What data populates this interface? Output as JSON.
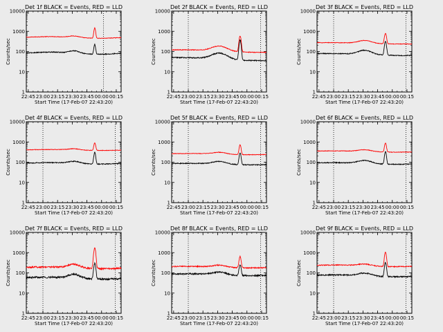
{
  "figure": {
    "background": "#ebebeb"
  },
  "chart_data": [
    {
      "type": "line",
      "title": "Det 1f BLACK = Events, RED = LLD",
      "xlabel": "Start Time (17-Feb-07 22:43:20)",
      "ylabel": "Counts/sec",
      "yscale": "log",
      "ylim": [
        1,
        10000
      ],
      "xlim": [
        "22:43",
        "00:20"
      ],
      "x_ticks": [
        "22:45",
        "23:00",
        "23:15",
        "23:30",
        "23:45",
        "00:00",
        "00:15"
      ],
      "y_ticks": [
        "1",
        "10",
        "100",
        "1000",
        "10000"
      ],
      "markers": [
        "00:02"
      ],
      "series": [
        {
          "color": "#ff0000",
          "base": 480,
          "ripple": [
            0.05,
            0.09,
            0.03
          ],
          "hump": 0.18,
          "hump_w": 7,
          "peak": 1500,
          "peak_w": 1.1,
          "noise": 0.03
        },
        {
          "color": "#000000",
          "base": 80,
          "ripple": [
            0.05,
            0.12,
            0.04
          ],
          "hump": 0.3,
          "hump_w": 7,
          "peak": 230,
          "peak_w": 1.1,
          "noise": 0.05
        }
      ]
    },
    {
      "type": "line",
      "title": "Det 2f BLACK = Events, RED = LLD",
      "xlabel": "Start Time (17-Feb-07 22:43:20)",
      "ylabel": "Counts/sec",
      "yscale": "log",
      "ylim": [
        1,
        10000
      ],
      "xlim": [
        "22:43",
        "00:20"
      ],
      "x_ticks": [
        "22:45",
        "23:00",
        "23:15",
        "23:30",
        "23:45",
        "00:00",
        "00:15"
      ],
      "y_ticks": [
        "1",
        "10",
        "100",
        "1000",
        "10000"
      ],
      "markers": [
        "23:00",
        "00:14"
      ],
      "series": [
        {
          "color": "#ff0000",
          "base": 105,
          "ripple": [
            0.16,
            0.05,
            -0.12
          ],
          "hump": 0.75,
          "hump_w": 10,
          "peak": 600,
          "peak_w": 1.3,
          "noise": 0.04
        },
        {
          "color": "#000000",
          "base": 42,
          "ripple": [
            0.2,
            0.05,
            -0.15
          ],
          "hump": 0.95,
          "hump_w": 10,
          "peak": 370,
          "peak_w": 1.3,
          "noise": 0.06
        }
      ]
    },
    {
      "type": "line",
      "title": "Det 3f BLACK = Events, RED = LLD",
      "xlabel": "Start Time (17-Feb-07 22:43:20)",
      "ylabel": "Counts/sec",
      "yscale": "log",
      "ylim": [
        1,
        10000
      ],
      "xlim": [
        "22:43",
        "00:20"
      ],
      "x_ticks": [
        "22:45",
        "23:00",
        "23:15",
        "23:30",
        "23:45",
        "00:00",
        "00:15"
      ],
      "y_ticks": [
        "1",
        "10",
        "100",
        "1000",
        "10000"
      ],
      "markers": [
        "23:00",
        "00:14"
      ],
      "series": [
        {
          "color": "#ff0000",
          "base": 250,
          "ripple": [
            0.1,
            0.03,
            -0.05
          ],
          "hump": 0.38,
          "hump_w": 9,
          "peak": 800,
          "peak_w": 1.3,
          "noise": 0.03
        },
        {
          "color": "#000000",
          "base": 70,
          "ripple": [
            0.14,
            0.04,
            -0.08
          ],
          "hump": 0.6,
          "hump_w": 9,
          "peak": 320,
          "peak_w": 1.3,
          "noise": 0.05
        }
      ]
    },
    {
      "type": "line",
      "title": "Det 4f BLACK = Events, RED = LLD",
      "xlabel": "Start Time (17-Feb-07 22:43:20)",
      "ylabel": "Counts/sec",
      "yscale": "log",
      "ylim": [
        1,
        10000
      ],
      "xlim": [
        "22:43",
        "00:20"
      ],
      "x_ticks": [
        "22:45",
        "23:00",
        "23:15",
        "23:30",
        "23:45",
        "00:00",
        "00:15"
      ],
      "y_ticks": [
        "1",
        "10",
        "100",
        "1000",
        "10000"
      ],
      "markers": [
        "23:00",
        "00:14"
      ],
      "series": [
        {
          "color": "#ff0000",
          "base": 390,
          "ripple": [
            0.04,
            0.05,
            0.02
          ],
          "hump": 0.15,
          "hump_w": 8,
          "peak": 900,
          "peak_w": 1.2,
          "noise": 0.03
        },
        {
          "color": "#000000",
          "base": 85,
          "ripple": [
            0.05,
            0.08,
            0.03
          ],
          "hump": 0.25,
          "hump_w": 8,
          "peak": 310,
          "peak_w": 1.2,
          "noise": 0.05
        }
      ]
    },
    {
      "type": "line",
      "title": "Det 5f BLACK = Events, RED = LLD",
      "xlabel": "Start Time (17-Feb-07 22:43:20)",
      "ylabel": "Counts/sec",
      "yscale": "log",
      "ylim": [
        1,
        10000
      ],
      "xlim": [
        "22:43",
        "00:20"
      ],
      "x_ticks": [
        "22:45",
        "23:00",
        "23:15",
        "23:30",
        "23:45",
        "00:00",
        "00:15"
      ],
      "y_ticks": [
        "1",
        "10",
        "100",
        "1000",
        "10000"
      ],
      "markers": [
        "23:00",
        "00:14"
      ],
      "series": [
        {
          "color": "#ff0000",
          "base": 250,
          "ripple": [
            0.06,
            0.04,
            -0.04
          ],
          "hump": 0.22,
          "hump_w": 9,
          "peak": 750,
          "peak_w": 1.2,
          "noise": 0.03
        },
        {
          "color": "#000000",
          "base": 80,
          "ripple": [
            0.08,
            0.05,
            -0.05
          ],
          "hump": 0.35,
          "hump_w": 9,
          "peak": 300,
          "peak_w": 1.2,
          "noise": 0.05
        }
      ]
    },
    {
      "type": "line",
      "title": "Det 6f BLACK = Events, RED = LLD",
      "xlabel": "Start Time (17-Feb-07 22:43:20)",
      "ylabel": "Counts/sec",
      "yscale": "log",
      "ylim": [
        1,
        10000
      ],
      "xlim": [
        "22:43",
        "00:20"
      ],
      "x_ticks": [
        "22:45",
        "23:00",
        "23:15",
        "23:30",
        "23:45",
        "00:00",
        "00:15"
      ],
      "y_ticks": [
        "1",
        "10",
        "100",
        "1000",
        "10000"
      ],
      "markers": [
        "23:00",
        "00:14"
      ],
      "series": [
        {
          "color": "#ff0000",
          "base": 330,
          "ripple": [
            0.08,
            0.04,
            -0.03
          ],
          "hump": 0.22,
          "hump_w": 9,
          "peak": 900,
          "peak_w": 1.2,
          "noise": 0.03
        },
        {
          "color": "#000000",
          "base": 85,
          "ripple": [
            0.1,
            0.05,
            -0.05
          ],
          "hump": 0.4,
          "hump_w": 9,
          "peak": 340,
          "peak_w": 1.2,
          "noise": 0.05
        }
      ]
    },
    {
      "type": "line",
      "title": "Det 7f BLACK = Events, RED = LLD",
      "xlabel": "Start Time (17-Feb-07 22:43:20)",
      "ylabel": "Counts/sec",
      "yscale": "log",
      "ylim": [
        1,
        10000
      ],
      "xlim": [
        "22:43",
        "00:20"
      ],
      "x_ticks": [
        "22:45",
        "23:00",
        "23:15",
        "23:30",
        "23:45",
        "00:00",
        "00:15"
      ],
      "y_ticks": [
        "1",
        "10",
        "100",
        "1000",
        "10000"
      ],
      "markers": [
        "23:00",
        "00:14"
      ],
      "series": [
        {
          "color": "#ff0000",
          "base": 170,
          "ripple": [
            0.1,
            0.08,
            0.0
          ],
          "hump": 0.5,
          "hump_w": 8,
          "peak": 1700,
          "peak_w": 1.3,
          "noise": 0.09
        },
        {
          "color": "#000000",
          "base": 52,
          "ripple": [
            0.12,
            0.08,
            0.0
          ],
          "hump": 0.55,
          "hump_w": 8,
          "peak": 300,
          "peak_w": 1.3,
          "noise": 0.1
        }
      ]
    },
    {
      "type": "line",
      "title": "Det 8f BLACK = Events, RED = LLD",
      "xlabel": "Start Time (17-Feb-07 22:43:20)",
      "ylabel": "Counts/sec",
      "yscale": "log",
      "ylim": [
        1,
        10000
      ],
      "xlim": [
        "22:43",
        "00:20"
      ],
      "x_ticks": [
        "22:45",
        "23:00",
        "23:15",
        "23:30",
        "23:45",
        "00:00",
        "00:15"
      ],
      "y_ticks": [
        "1",
        "10",
        "100",
        "1000",
        "10000"
      ],
      "markers": [
        "23:00",
        "00:14"
      ],
      "series": [
        {
          "color": "#ff0000",
          "base": 190,
          "ripple": [
            0.08,
            0.05,
            -0.05
          ],
          "hump": 0.25,
          "hump_w": 9,
          "peak": 650,
          "peak_w": 1.3,
          "noise": 0.06
        },
        {
          "color": "#000000",
          "base": 80,
          "ripple": [
            0.1,
            0.06,
            -0.06
          ],
          "hump": 0.35,
          "hump_w": 9,
          "peak": 260,
          "peak_w": 1.3,
          "noise": 0.08
        }
      ]
    },
    {
      "type": "line",
      "title": "Det 9f BLACK = Events, RED = LLD",
      "xlabel": "Start Time (17-Feb-07 22:43:20)",
      "ylabel": "Counts/sec",
      "yscale": "log",
      "ylim": [
        1,
        10000
      ],
      "xlim": [
        "22:43",
        "00:20"
      ],
      "x_ticks": [
        "22:45",
        "23:00",
        "23:15",
        "23:30",
        "23:45",
        "00:00",
        "00:15"
      ],
      "y_ticks": [
        "1",
        "10",
        "100",
        "1000",
        "10000"
      ],
      "markers": [
        "23:00",
        "00:14"
      ],
      "series": [
        {
          "color": "#ff0000",
          "base": 220,
          "ripple": [
            0.08,
            0.06,
            -0.04
          ],
          "hump": 0.22,
          "hump_w": 9,
          "peak": 1100,
          "peak_w": 1.2,
          "noise": 0.05
        },
        {
          "color": "#000000",
          "base": 70,
          "ripple": [
            0.1,
            0.06,
            -0.05
          ],
          "hump": 0.35,
          "hump_w": 9,
          "peak": 330,
          "peak_w": 1.2,
          "noise": 0.07
        }
      ]
    }
  ]
}
